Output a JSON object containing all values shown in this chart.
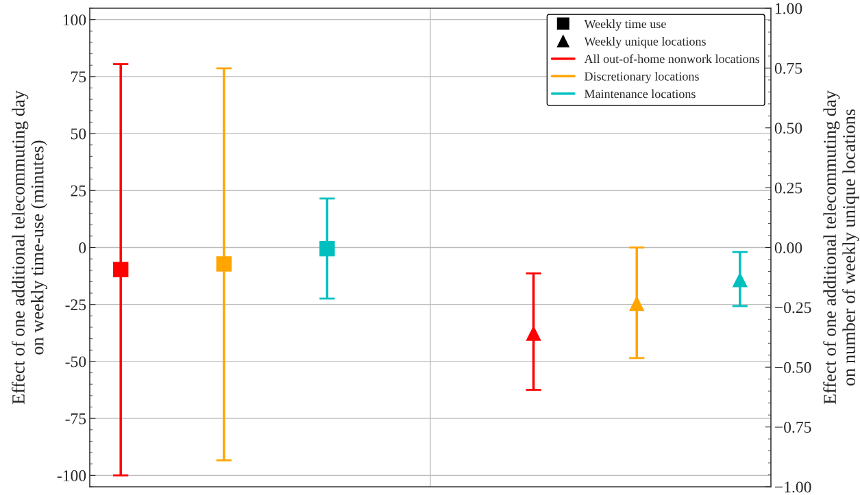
{
  "chart_data": {
    "type": "scatter",
    "categories": [
      null,
      null,
      null,
      null,
      null,
      null,
      null
    ],
    "series": [
      {
        "name": "All out-of-home nonwork locations",
        "color": "#ff0000",
        "marker": "square",
        "values": [
          -9.7,
          null,
          null,
          null,
          null,
          null,
          null
        ],
        "errors": [
          [
            -100,
            80.5
          ],
          null,
          null,
          null,
          null,
          null,
          null
        ]
      },
      {
        "name": "Discretionary locations",
        "color": "#ffa500",
        "marker": "square",
        "values": [
          null,
          -7.2,
          null,
          null,
          null,
          null,
          null
        ],
        "errors": [
          null,
          [
            -93.4,
            78.6
          ],
          null,
          null,
          null,
          null,
          null
        ]
      },
      {
        "name": "Maintenance locations",
        "color": "#00bfbf",
        "marker": "square",
        "values": [
          null,
          null,
          -0.5,
          null,
          null,
          null,
          null
        ],
        "errors": [
          null,
          null,
          [
            -22.4,
            21.5
          ],
          null,
          null,
          null,
          null
        ]
      },
      {
        "color": "#ff0000",
        "marker": "triangle",
        "axis": "y2",
        "values": [
          null,
          null,
          null,
          null,
          -0.358,
          null,
          null
        ],
        "errors": [
          null,
          null,
          null,
          null,
          [
            -0.595,
            -0.108
          ],
          null,
          null
        ]
      },
      {
        "color": "#ffa500",
        "marker": "triangle",
        "axis": "y2",
        "values": [
          null,
          null,
          null,
          null,
          null,
          -0.233,
          null
        ],
        "errors": [
          null,
          null,
          null,
          null,
          null,
          [
            -0.462,
            0.0
          ],
          null
        ]
      },
      {
        "color": "#00bfbf",
        "marker": "triangle",
        "axis": "y2",
        "values": [
          null,
          null,
          null,
          null,
          null,
          null,
          -0.134
        ],
        "errors": [
          null,
          null,
          null,
          null,
          null,
          null,
          [
            -0.245,
            -0.019
          ]
        ]
      }
    ],
    "annotations": [
      "Weekly time use",
      "Weekly unique locations"
    ],
    "ylabel": "Effect of one additional telecommuting day\non weekly time-use (minutes)",
    "y2label": "Effect of one additional telecommuting day\non number of weekly unique locations",
    "ylim": [
      -105,
      105
    ],
    "yticks": [
      -100,
      -75,
      -50,
      -25,
      0,
      25,
      50,
      75,
      100
    ],
    "y2lim": [
      -1,
      1
    ],
    "y2ticks": [
      {
        "value": -1,
        "label": "−1.00"
      },
      {
        "value": -0.75,
        "label": "−0.75"
      },
      {
        "value": -0.5,
        "label": "−0.50"
      },
      {
        "value": -0.25,
        "label": "−0.25"
      },
      {
        "value": 0,
        "label": "0.00"
      },
      {
        "value": 0.25,
        "label": "0.25"
      },
      {
        "value": 0.5,
        "label": "0.50"
      },
      {
        "value": 0.75,
        "label": "0.75"
      },
      {
        "value": 1,
        "label": "1.00"
      }
    ],
    "grid": "y",
    "legend": "top right",
    "tick_labels": "y"
  }
}
